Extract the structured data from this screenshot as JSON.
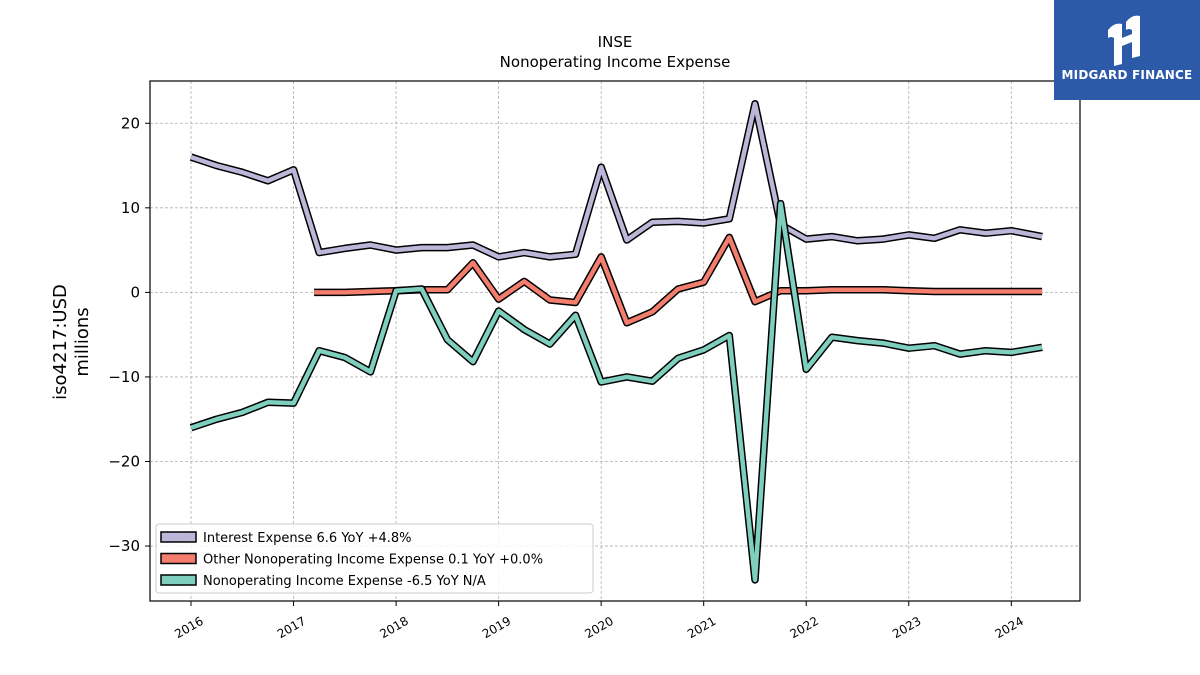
{
  "chart_data": {
    "type": "line",
    "title": "INSE",
    "subtitle": "Nonoperating Income Expense",
    "ylabel": "iso4217:USD",
    "ylabel2": "millions",
    "xlim": [
      2015.6,
      2024.67
    ],
    "ylim": [
      -36.5,
      25
    ],
    "x_ticks": [
      2016,
      2017,
      2018,
      2019,
      2020,
      2021,
      2022,
      2023,
      2024
    ],
    "x_tick_labels": [
      "2016",
      "2017",
      "2018",
      "2019",
      "2020",
      "2021",
      "2022",
      "2023",
      "2024"
    ],
    "y_ticks": [
      -30,
      -20,
      -10,
      0,
      10,
      20
    ],
    "y_tick_labels": [
      "−30",
      "−20",
      "−10",
      "0",
      "10",
      "20"
    ],
    "grid": true,
    "legend_position": "lower-left",
    "series": [
      {
        "name": "Interest Expense  6.6 YoY +4.8%",
        "color": "#bcb6d8",
        "x": [
          2016.0,
          2016.25,
          2016.5,
          2016.75,
          2017.0,
          2017.25,
          2017.5,
          2017.75,
          2018.0,
          2018.25,
          2018.5,
          2018.75,
          2019.0,
          2019.25,
          2019.5,
          2019.75,
          2020.0,
          2020.25,
          2020.5,
          2020.75,
          2021.0,
          2021.25,
          2021.5,
          2021.75,
          2022.0,
          2022.25,
          2022.5,
          2022.75,
          2023.0,
          2023.25,
          2023.5,
          2023.75,
          2024.0,
          2024.3
        ],
        "y": [
          16.0,
          15.0,
          14.2,
          13.2,
          14.5,
          4.7,
          5.2,
          5.6,
          5.0,
          5.3,
          5.3,
          5.6,
          4.2,
          4.7,
          4.2,
          4.5,
          14.8,
          6.2,
          8.3,
          8.4,
          8.2,
          8.7,
          22.3,
          8.0,
          6.3,
          6.6,
          6.1,
          6.3,
          6.8,
          6.4,
          7.4,
          7.0,
          7.3,
          6.6
        ]
      },
      {
        "name": "Other Nonoperating Income Expense  0.1 YoY +0.0%",
        "color": "#f47e6e",
        "x": [
          2017.2,
          2017.5,
          2017.75,
          2018.0,
          2018.25,
          2018.5,
          2018.75,
          2019.0,
          2019.25,
          2019.5,
          2019.75,
          2020.0,
          2020.25,
          2020.5,
          2020.75,
          2021.0,
          2021.25,
          2021.5,
          2021.75,
          2022.0,
          2022.25,
          2022.5,
          2022.75,
          2023.0,
          2023.25,
          2023.5,
          2023.75,
          2024.0,
          2024.3
        ],
        "y": [
          0.0,
          0.0,
          0.1,
          0.2,
          0.3,
          0.3,
          3.5,
          -0.8,
          1.3,
          -0.9,
          -1.2,
          4.2,
          -3.6,
          -2.3,
          0.4,
          1.2,
          6.5,
          -1.1,
          0.2,
          0.2,
          0.3,
          0.3,
          0.3,
          0.2,
          0.1,
          0.1,
          0.1,
          0.1,
          0.1
        ]
      },
      {
        "name": "Nonoperating Income Expense  -6.5 YoY N/A",
        "color": "#7fcfbf",
        "x": [
          2016.0,
          2016.25,
          2016.5,
          2016.75,
          2017.0,
          2017.25,
          2017.5,
          2017.75,
          2018.0,
          2018.25,
          2018.5,
          2018.75,
          2019.0,
          2019.25,
          2019.5,
          2019.75,
          2020.0,
          2020.25,
          2020.5,
          2020.75,
          2021.0,
          2021.25,
          2021.5,
          2021.75,
          2022.0,
          2022.25,
          2022.5,
          2022.75,
          2023.0,
          2023.25,
          2023.5,
          2023.75,
          2024.0,
          2024.3
        ],
        "y": [
          -16.0,
          -15.0,
          -14.2,
          -13.0,
          -13.1,
          -6.9,
          -7.7,
          -9.4,
          0.2,
          0.4,
          -5.6,
          -8.2,
          -2.2,
          -4.4,
          -6.1,
          -2.7,
          -10.6,
          -10.0,
          -10.5,
          -7.8,
          -6.8,
          -5.1,
          -34.0,
          10.5,
          -9.1,
          -5.3,
          -5.7,
          -6.0,
          -6.6,
          -6.3,
          -7.3,
          -6.9,
          -7.1,
          -6.5
        ]
      }
    ]
  },
  "logo": {
    "text": "MIDGARD FINANCE",
    "background": "#2c5aa8"
  }
}
